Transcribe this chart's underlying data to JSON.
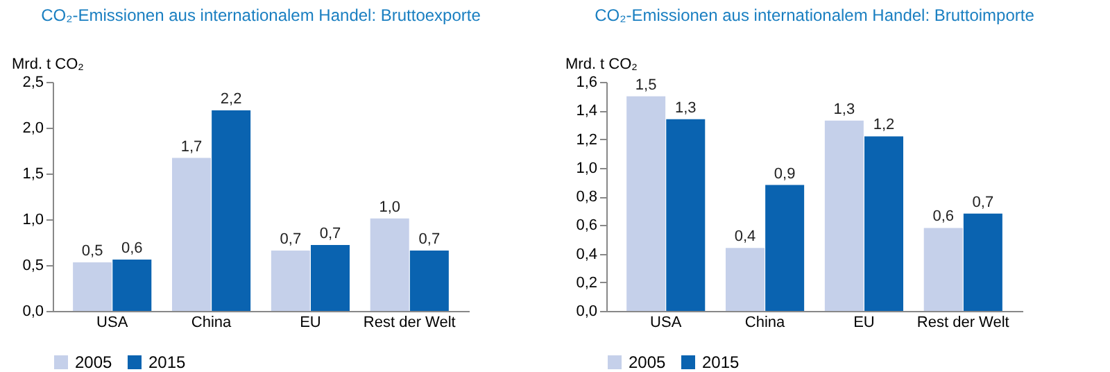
{
  "chart_data": [
    {
      "type": "bar",
      "title": "CO₂-Emissionen aus internationalem Handel: Bruttoexporte",
      "ylabel": "Mrd. t CO₂",
      "categories": [
        "USA",
        "China",
        "EU",
        "Rest der Welt"
      ],
      "series": [
        {
          "name": "2005",
          "color": "#c5d0ea",
          "values": [
            0.53,
            1.67,
            0.66,
            1.01
          ],
          "value_labels": [
            "0,5",
            "1,7",
            "0,7",
            "1,0"
          ]
        },
        {
          "name": "2015",
          "color": "#0a63b0",
          "values": [
            0.56,
            2.19,
            0.72,
            0.66
          ],
          "value_labels": [
            "0,6",
            "2,2",
            "0,7",
            "0,7"
          ]
        }
      ],
      "ylim": [
        0,
        2.5
      ],
      "yticks": [
        {
          "value": 0,
          "label": "0,0"
        },
        {
          "value": 0.5,
          "label": "0,5"
        },
        {
          "value": 1,
          "label": "1,0"
        },
        {
          "value": 1.5,
          "label": "1,5"
        },
        {
          "value": 2,
          "label": "2,0"
        },
        {
          "value": 2.5,
          "label": "2,5"
        }
      ],
      "grid": false,
      "legend": "bottom"
    },
    {
      "type": "bar",
      "title": "CO₂-Emissionen aus internationalem Handel: Bruttoimporte",
      "ylabel": "Mrd. t CO₂",
      "categories": [
        "USA",
        "China",
        "EU",
        "Rest der Welt"
      ],
      "series": [
        {
          "name": "2005",
          "color": "#c5d0ea",
          "values": [
            1.5,
            0.44,
            1.33,
            0.58
          ],
          "value_labels": [
            "1,5",
            "0,4",
            "1,3",
            "0,6"
          ]
        },
        {
          "name": "2015",
          "color": "#0a63b0",
          "values": [
            1.34,
            0.88,
            1.22,
            0.68
          ],
          "value_labels": [
            "1,3",
            "0,9",
            "1,2",
            "0,7"
          ]
        }
      ],
      "ylim": [
        0,
        1.6
      ],
      "yticks": [
        {
          "value": 0,
          "label": "0,0"
        },
        {
          "value": 0.2,
          "label": "0,2"
        },
        {
          "value": 0.4,
          "label": "0,4"
        },
        {
          "value": 0.6,
          "label": "0,6"
        },
        {
          "value": 0.8,
          "label": "0,8"
        },
        {
          "value": 1,
          "label": "1,0"
        },
        {
          "value": 1.2,
          "label": "1,2"
        },
        {
          "value": 1.4,
          "label": "1,4"
        },
        {
          "value": 1.6,
          "label": "1,6"
        }
      ],
      "grid": false,
      "legend": "bottom"
    }
  ]
}
